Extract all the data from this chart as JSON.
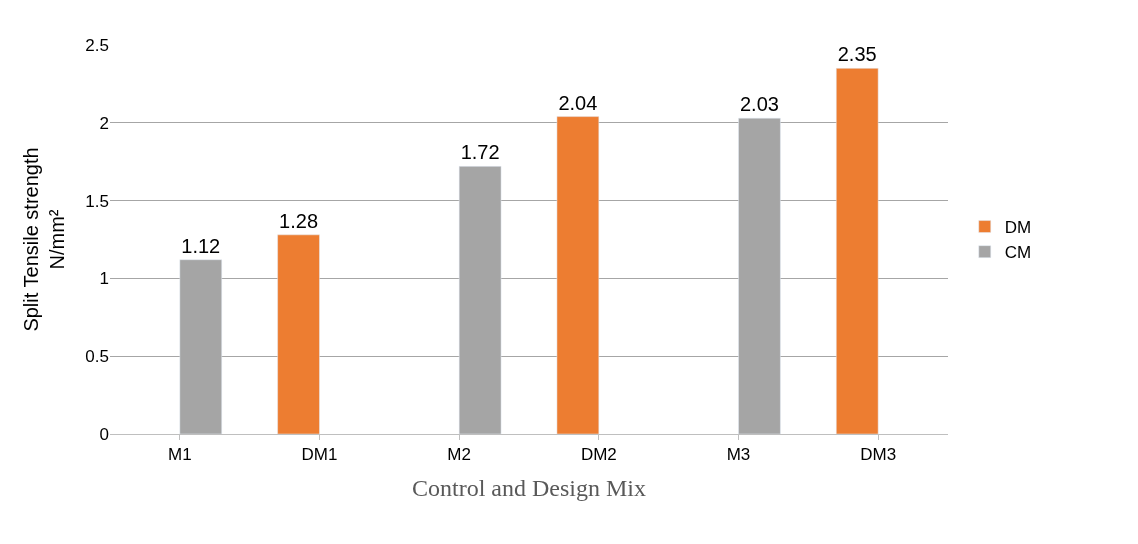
{
  "chart_data": {
    "type": "bar",
    "xlabel": "Control and Design Mix",
    "ylabel": "Split Tensile strength\nN/mm²",
    "categories": [
      "M1",
      "DM1",
      "M2",
      "DM2",
      "M3",
      "DM3"
    ],
    "series": [
      {
        "name": "DM",
        "color": "#ed7d31",
        "values": [
          null,
          1.28,
          null,
          2.04,
          null,
          2.35
        ]
      },
      {
        "name": "CM",
        "color": "#a5a5a5",
        "values": [
          1.12,
          null,
          1.72,
          null,
          2.03,
          null
        ]
      }
    ],
    "ylim": [
      0,
      2.5
    ],
    "yticks": [
      0,
      0.5,
      1,
      1.5,
      2,
      2.5
    ],
    "grid": "y",
    "legend": "right",
    "data_labels": true
  }
}
